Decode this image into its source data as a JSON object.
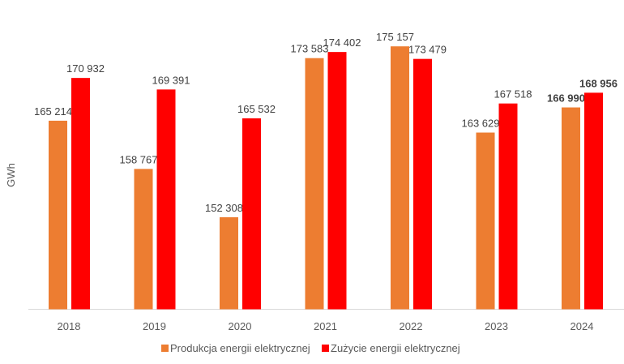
{
  "chart_data": {
    "type": "bar",
    "title": "",
    "xlabel": "",
    "ylabel": "GWh",
    "ylim": [
      140000,
      180000
    ],
    "grid": false,
    "legend_position": "bottom",
    "categories": [
      "2018",
      "2019",
      "2020",
      "2021",
      "2022",
      "2023",
      "2024"
    ],
    "series": [
      {
        "name": "Produkcja energii elektrycznej",
        "color": "#ED7D31",
        "values": [
          165214,
          158767,
          152308,
          173583,
          175157,
          163629,
          166990
        ],
        "labels": [
          "165 214",
          "158 767",
          "152 308",
          "173 583",
          "175 157",
          "163 629",
          "166 990"
        ]
      },
      {
        "name": "Zużycie energii elektrycznej",
        "color": "#FF0000",
        "values": [
          170932,
          169391,
          165532,
          174402,
          173479,
          167518,
          168956
        ],
        "labels": [
          "170 932",
          "169 391",
          "165 532",
          "174 402",
          "173 479",
          "167 518",
          "168 956"
        ]
      }
    ],
    "bold_category": "2024"
  }
}
